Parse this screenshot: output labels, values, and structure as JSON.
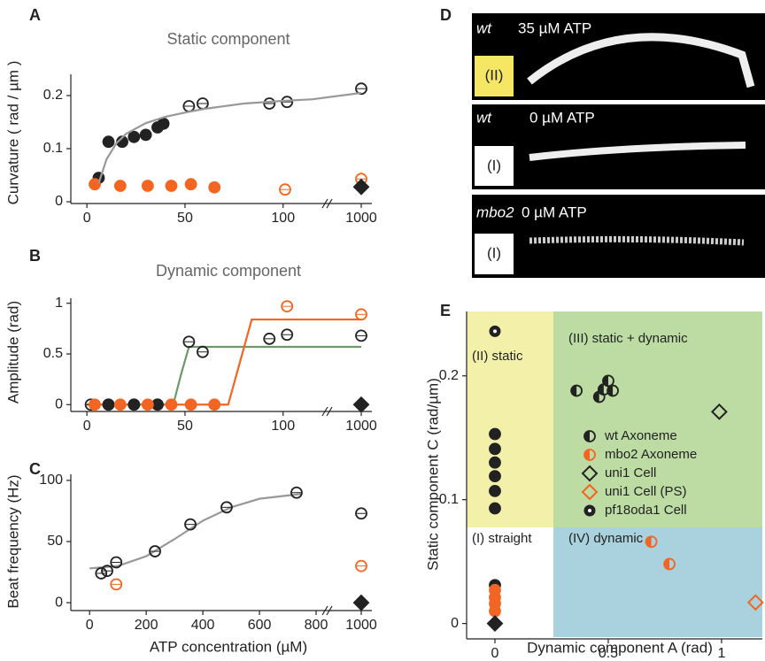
{
  "chart_data": [
    {
      "type": "scatter",
      "panel": "A",
      "title": "Static component",
      "ylabel": "Curvature ( rad / µm )",
      "xlim": [
        -10,
        115
      ],
      "ylim": [
        0,
        0.24
      ],
      "xticks": [
        0,
        50,
        100,
        1000
      ],
      "yticks": [
        0,
        0.1,
        0.2
      ],
      "axis_break": true,
      "series": [
        {
          "color": "#222222",
          "marker": "circle",
          "filled": true,
          "x": [
            6,
            11,
            18,
            24,
            30,
            36,
            39
          ],
          "values": [
            0.045,
            0.113,
            0.113,
            0.122,
            0.126,
            0.14,
            0.147
          ]
        },
        {
          "color": "#222222",
          "marker": "circle",
          "filled": false,
          "x": [
            52,
            59,
            93,
            102,
            1000
          ],
          "values": [
            0.18,
            0.185,
            0.185,
            0.188,
            0.213
          ]
        },
        {
          "color": "#f26522",
          "marker": "circle",
          "filled": true,
          "x": [
            4,
            17,
            31,
            43,
            53,
            65
          ],
          "values": [
            0.033,
            0.03,
            0.03,
            0.03,
            0.033,
            0.027
          ]
        },
        {
          "color": "#f26522",
          "marker": "circle",
          "filled": false,
          "x": [
            101,
            1000
          ],
          "values": [
            0.023,
            0.043
          ]
        },
        {
          "color": "#222222",
          "marker": "diamond",
          "filled": true,
          "x": [
            1000
          ],
          "values": [
            0.028
          ]
        },
        {
          "color": "#999999",
          "marker": "line",
          "x": [
            6,
            10,
            15,
            20,
            30,
            40,
            50,
            60,
            80,
            100,
            115,
            1000
          ],
          "values": [
            0.035,
            0.08,
            0.11,
            0.128,
            0.148,
            0.16,
            0.168,
            0.175,
            0.185,
            0.19,
            0.193,
            0.205
          ]
        }
      ]
    },
    {
      "type": "scatter",
      "panel": "B",
      "title": "Dynamic component",
      "ylabel": "Amplitude  (rad)",
      "xlim": [
        -10,
        115
      ],
      "ylim": [
        -0.05,
        1.05
      ],
      "xticks": [
        0,
        50,
        100,
        1000
      ],
      "yticks": [
        0,
        0.5,
        1
      ],
      "axis_break": true,
      "series": [
        {
          "color": "#6a9a6a",
          "marker": "line",
          "x": [
            0,
            44,
            48,
            52,
            115,
            1000
          ],
          "values": [
            0,
            0,
            0.3,
            0.57,
            0.57,
            0.57
          ]
        },
        {
          "color": "#f26522",
          "marker": "line",
          "x": [
            0,
            72,
            78,
            84,
            115,
            1000
          ],
          "values": [
            0,
            0,
            0.42,
            0.84,
            0.84,
            0.84
          ]
        },
        {
          "color": "#222222",
          "marker": "circle",
          "filled": false,
          "x": [
            2,
            11,
            24,
            36,
            52,
            59,
            93,
            102,
            1000
          ],
          "values": [
            0,
            0,
            0,
            0,
            0.62,
            0.52,
            0.65,
            0.69,
            0.68
          ]
        },
        {
          "color": "#222222",
          "marker": "circle",
          "filled": true,
          "x": [
            11,
            24,
            36
          ],
          "values": [
            0,
            0,
            0
          ]
        },
        {
          "color": "#f26522",
          "marker": "circle",
          "filled": true,
          "x": [
            4,
            17,
            31,
            43,
            53,
            65
          ],
          "values": [
            0,
            0,
            0,
            0,
            0,
            0
          ]
        },
        {
          "color": "#f26522",
          "marker": "circle",
          "filled": false,
          "x": [
            102,
            1000
          ],
          "values": [
            0.97,
            0.89
          ]
        },
        {
          "color": "#222222",
          "marker": "diamond",
          "filled": true,
          "x": [
            1000
          ],
          "values": [
            0
          ]
        }
      ]
    },
    {
      "type": "scatter",
      "panel": "C",
      "ylabel": "Beat frequency (Hz)",
      "xlabel": "ATP  concentration (µM)",
      "xlim": [
        -60,
        850
      ],
      "ylim": [
        -5,
        105
      ],
      "xticks": [
        0,
        200,
        400,
        600,
        800,
        1000
      ],
      "yticks": [
        0,
        50,
        100
      ],
      "axis_break": true,
      "series": [
        {
          "color": "#999999",
          "marker": "line",
          "x": [
            0,
            100,
            200,
            300,
            400,
            500,
            600,
            750
          ],
          "values": [
            28,
            30,
            38,
            52,
            67,
            78,
            85,
            89
          ]
        },
        {
          "color": "#222222",
          "marker": "circle",
          "filled": false,
          "x": [
            41,
            62,
            94,
            231,
            356,
            484,
            731,
            1000
          ],
          "values": [
            24,
            26,
            33,
            42,
            64,
            78,
            90,
            73
          ]
        },
        {
          "color": "#f26522",
          "marker": "circle",
          "filled": false,
          "x": [
            94,
            1000
          ],
          "values": [
            15,
            30
          ]
        },
        {
          "color": "#222222",
          "marker": "diamond",
          "filled": true,
          "x": [
            1000
          ],
          "values": [
            0
          ]
        }
      ]
    },
    {
      "type": "scatter",
      "panel": "E",
      "ylabel": "Static component C (rad/µm)",
      "xlabel": "Dynamic component A  (rad)",
      "xlim": [
        -0.125,
        1.18
      ],
      "ylim": [
        -0.011,
        0.252
      ],
      "xticks": [
        0,
        0.5,
        1
      ],
      "yticks": [
        0,
        0.1,
        0.2
      ],
      "regions": [
        "(II)  static",
        "(III)  static + dynamic",
        "(I)  straight",
        "(IV)  dynamic"
      ],
      "series": [
        {
          "name": "wt Axoneme",
          "color": "#222222",
          "marker": "half",
          "x": [
            0.36,
            0.46,
            0.48,
            0.5,
            0.52
          ],
          "values": [
            0.188,
            0.183,
            0.189,
            0.196,
            0.188
          ]
        },
        {
          "name": "mbo2 Axoneme",
          "color": "#f26522",
          "marker": "half",
          "x": [
            0.69,
            0.77
          ],
          "values": [
            0.066,
            0.048
          ]
        },
        {
          "name": "uni1 Cell",
          "color": "#222222",
          "marker": "diamond",
          "filled": false,
          "x": [
            0.99
          ],
          "values": [
            0.171
          ]
        },
        {
          "name": "uni1 Cell (PS)",
          "color": "#f26522",
          "marker": "diamond",
          "filled": false,
          "x": [
            1.15
          ],
          "values": [
            0.017
          ]
        },
        {
          "name": "pf18oda1 Cell",
          "color": "#222222",
          "marker": "dot",
          "x": [
            0
          ],
          "values": [
            0.236
          ]
        },
        {
          "color": "#222222",
          "marker": "circle",
          "filled": true,
          "x": [
            0,
            0,
            0,
            0,
            0,
            0,
            0
          ],
          "values": [
            0.093,
            0.107,
            0.119,
            0.13,
            0.141,
            0.153,
            0.031
          ]
        },
        {
          "color": "#f26522",
          "marker": "circle",
          "filled": true,
          "x": [
            0,
            0,
            0,
            0
          ],
          "values": [
            0.027,
            0.021,
            0.016,
            0.01
          ]
        },
        {
          "color": "#222222",
          "marker": "diamond",
          "filled": true,
          "x": [
            0
          ],
          "values": [
            0
          ]
        }
      ]
    }
  ],
  "panel_d": {
    "panel": "D",
    "images": [
      {
        "strain": "wt",
        "condition": "35 µM ATP",
        "state": "(II)"
      },
      {
        "strain": "wt",
        "condition": "0  µM ATP",
        "state": "(I)"
      },
      {
        "strain": "mbo2",
        "condition": "0 µM ATP",
        "state": "(I)"
      }
    ]
  }
}
